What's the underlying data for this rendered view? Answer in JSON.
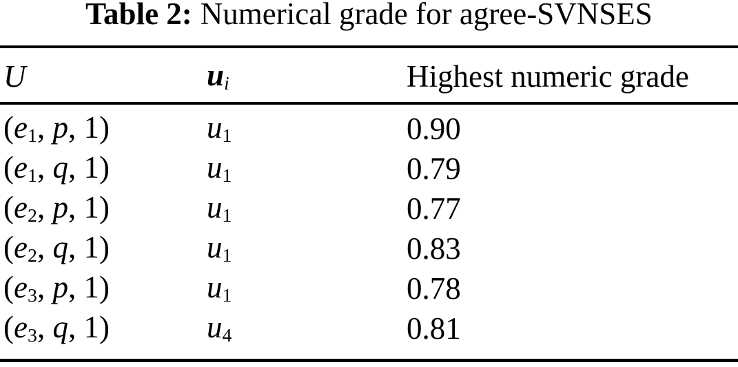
{
  "caption": {
    "label": "Table 2:",
    "text": "Numerical grade for agree-SVNSES"
  },
  "header": {
    "col1": "U",
    "col2_var": "u",
    "col2_sub": "i",
    "col3": "Highest numeric grade"
  },
  "rows": [
    {
      "open": "(",
      "var": "e",
      "var_sub": "1",
      "comma": ", ",
      "attr": "p",
      "tail": ", 1)",
      "u_var": "u",
      "u_sub": "1",
      "grade": "0.90"
    },
    {
      "open": "(",
      "var": "e",
      "var_sub": "1",
      "comma": ", ",
      "attr": "q",
      "tail": ", 1)",
      "u_var": "u",
      "u_sub": "1",
      "grade": "0.79"
    },
    {
      "open": "(",
      "var": "e",
      "var_sub": "2",
      "comma": ", ",
      "attr": "p",
      "tail": ", 1)",
      "u_var": "u",
      "u_sub": "1",
      "grade": "0.77"
    },
    {
      "open": "(",
      "var": "e",
      "var_sub": "2",
      "comma": ", ",
      "attr": "q",
      "tail": ", 1)",
      "u_var": "u",
      "u_sub": "1",
      "grade": "0.83"
    },
    {
      "open": "(",
      "var": "e",
      "var_sub": "3",
      "comma": ", ",
      "attr": "p",
      "tail": ", 1)",
      "u_var": "u",
      "u_sub": "1",
      "grade": "0.78"
    },
    {
      "open": "(",
      "var": "e",
      "var_sub": "3",
      "comma": ", ",
      "attr": "q",
      "tail": ", 1)",
      "u_var": "u",
      "u_sub": "4",
      "grade": "0.81"
    }
  ],
  "chart_data": {
    "type": "table",
    "title": "Table 2: Numerical grade for agree-SVNSES",
    "columns": [
      "U",
      "u_i",
      "Highest numeric grade"
    ],
    "rows": [
      [
        "(e_1, p, 1)",
        "u_1",
        "0.90"
      ],
      [
        "(e_1, q, 1)",
        "u_1",
        "0.79"
      ],
      [
        "(e_2, p, 1)",
        "u_1",
        "0.77"
      ],
      [
        "(e_2, q, 1)",
        "u_1",
        "0.83"
      ],
      [
        "(e_3, p, 1)",
        "u_1",
        "0.78"
      ],
      [
        "(e_3, q, 1)",
        "u_4",
        "0.81"
      ]
    ],
    "values_numeric": [
      0.9,
      0.79,
      0.77,
      0.83,
      0.78,
      0.81
    ]
  },
  "colors": {
    "text": "#000000",
    "background": "#ffffff",
    "rule": "#000000"
  }
}
